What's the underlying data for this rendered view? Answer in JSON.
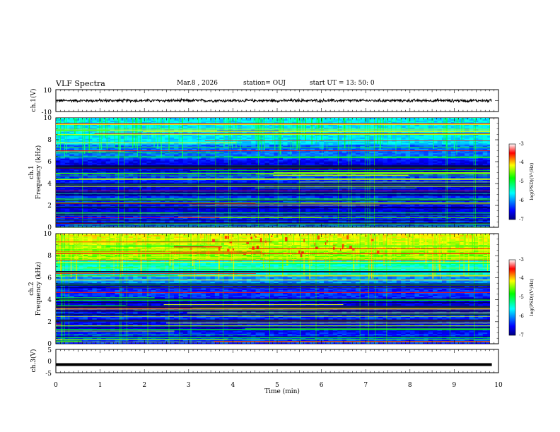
{
  "header": {
    "title": "VLF Spectra",
    "date": "Mar.8  , 2026",
    "station": "station= OUJ",
    "start": "start  UT  =   13: 50: 0"
  },
  "chart_data": [
    {
      "panel": "ch1-waveform",
      "type": "line",
      "ylabel": "ch.1(V)",
      "ylim": [
        -10,
        10
      ],
      "yticks": [
        "10",
        "-10"
      ],
      "xlim": [
        0,
        10
      ],
      "trace_level": 0,
      "trace_amplitude": 1
    },
    {
      "panel": "ch1-spectrogram",
      "type": "heatmap",
      "ylabel_line1": "ch.1",
      "ylabel_line2": "Frequency  (kHz)",
      "ylim": [
        0,
        10
      ],
      "yticks": [
        "0",
        "2",
        "4",
        "6",
        "8",
        "10"
      ],
      "xlim": [
        0,
        9.85
      ],
      "colorbar": {
        "label": "log(PSD)(V²/Hz)",
        "range": [
          -7,
          -3
        ],
        "ticks": [
          "-3",
          "-4",
          "-5",
          "-6",
          "-7"
        ]
      }
    },
    {
      "panel": "ch2-spectrogram",
      "type": "heatmap",
      "ylabel_line1": "ch.2",
      "ylabel_line2": "Frequency  (kHz)",
      "ylim": [
        0,
        10
      ],
      "yticks": [
        "0",
        "2",
        "4",
        "6",
        "8",
        "10"
      ],
      "xlim": [
        0,
        9.85
      ],
      "colorbar": {
        "label": "log(PSD)(V²/Hz)",
        "range": [
          -7,
          -3
        ],
        "ticks": [
          "-3",
          "-4",
          "-5",
          "-6",
          "-7"
        ]
      }
    },
    {
      "panel": "ch3-waveform",
      "type": "line",
      "ylabel": "ch.3(V)",
      "ylim": [
        -5,
        5
      ],
      "yticks": [
        "5",
        "0",
        "-5"
      ],
      "xlim": [
        0,
        10
      ],
      "trace_level": -1.5
    },
    {
      "panel": "time-axis",
      "type": "axis",
      "xlabel": "Time  (min)",
      "xticks": [
        "0",
        "1",
        "2",
        "3",
        "4",
        "5",
        "6",
        "7",
        "8",
        "9",
        "10"
      ]
    }
  ],
  "colors": {
    "jet_stops": [
      "#000080",
      "#0000ff",
      "#00ffff",
      "#00ff00",
      "#ffff00",
      "#ff0000",
      "#ffffff"
    ],
    "trace": "#000000"
  }
}
